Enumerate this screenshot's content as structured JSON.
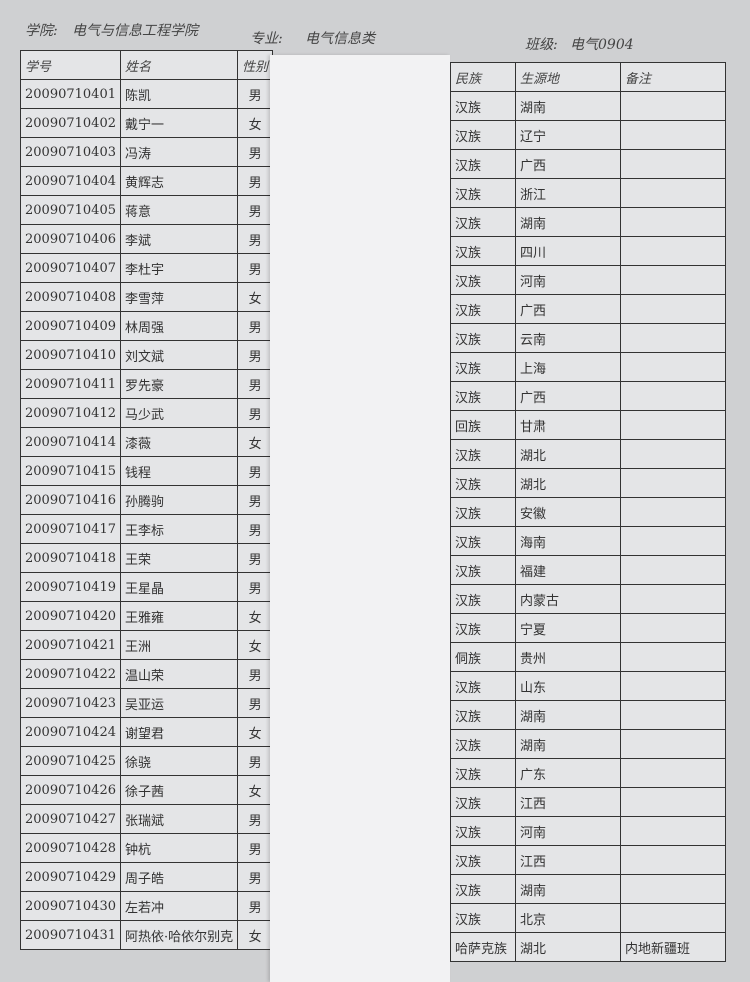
{
  "header": {
    "college_label": "学院:",
    "college": "电气与信息工程学院",
    "major_label": "专业:",
    "major": "电气信息类",
    "class_label": "班级:",
    "class": "电气0904"
  },
  "columns": {
    "id": "学号",
    "name": "姓名",
    "gender": "性别",
    "ethnicity": "民族",
    "origin": "生源地",
    "remarks": "备注"
  },
  "rows": [
    {
      "id": "20090710401",
      "name": "陈凯",
      "gender": "男",
      "ethnicity": "汉族",
      "origin": "湖南",
      "remarks": ""
    },
    {
      "id": "20090710402",
      "name": "戴宁一",
      "gender": "女",
      "ethnicity": "汉族",
      "origin": "辽宁",
      "remarks": ""
    },
    {
      "id": "20090710403",
      "name": "冯涛",
      "gender": "男",
      "ethnicity": "汉族",
      "origin": "广西",
      "remarks": ""
    },
    {
      "id": "20090710404",
      "name": "黄辉志",
      "gender": "男",
      "ethnicity": "汉族",
      "origin": "浙江",
      "remarks": ""
    },
    {
      "id": "20090710405",
      "name": "蒋意",
      "gender": "男",
      "ethnicity": "汉族",
      "origin": "湖南",
      "remarks": ""
    },
    {
      "id": "20090710406",
      "name": "李斌",
      "gender": "男",
      "ethnicity": "汉族",
      "origin": "四川",
      "remarks": ""
    },
    {
      "id": "20090710407",
      "name": "李杜宇",
      "gender": "男",
      "ethnicity": "汉族",
      "origin": "河南",
      "remarks": ""
    },
    {
      "id": "20090710408",
      "name": "李雪萍",
      "gender": "女",
      "ethnicity": "汉族",
      "origin": "广西",
      "remarks": ""
    },
    {
      "id": "20090710409",
      "name": "林周强",
      "gender": "男",
      "ethnicity": "汉族",
      "origin": "云南",
      "remarks": ""
    },
    {
      "id": "20090710410",
      "name": "刘文斌",
      "gender": "男",
      "ethnicity": "汉族",
      "origin": "上海",
      "remarks": ""
    },
    {
      "id": "20090710411",
      "name": "罗先豪",
      "gender": "男",
      "ethnicity": "汉族",
      "origin": "广西",
      "remarks": ""
    },
    {
      "id": "20090710412",
      "name": "马少武",
      "gender": "男",
      "ethnicity": "回族",
      "origin": "甘肃",
      "remarks": ""
    },
    {
      "id": "20090710414",
      "name": "漆薇",
      "gender": "女",
      "ethnicity": "汉族",
      "origin": "湖北",
      "remarks": ""
    },
    {
      "id": "20090710415",
      "name": "钱程",
      "gender": "男",
      "ethnicity": "汉族",
      "origin": "湖北",
      "remarks": ""
    },
    {
      "id": "20090710416",
      "name": "孙腾驹",
      "gender": "男",
      "ethnicity": "汉族",
      "origin": "安徽",
      "remarks": ""
    },
    {
      "id": "20090710417",
      "name": "王李标",
      "gender": "男",
      "ethnicity": "汉族",
      "origin": "海南",
      "remarks": ""
    },
    {
      "id": "20090710418",
      "name": "王荣",
      "gender": "男",
      "ethnicity": "汉族",
      "origin": "福建",
      "remarks": ""
    },
    {
      "id": "20090710419",
      "name": "王星晶",
      "gender": "男",
      "ethnicity": "汉族",
      "origin": "内蒙古",
      "remarks": ""
    },
    {
      "id": "20090710420",
      "name": "王雅雍",
      "gender": "女",
      "ethnicity": "汉族",
      "origin": "宁夏",
      "remarks": ""
    },
    {
      "id": "20090710421",
      "name": "王洲",
      "gender": "女",
      "ethnicity": "侗族",
      "origin": "贵州",
      "remarks": ""
    },
    {
      "id": "20090710422",
      "name": "温山荣",
      "gender": "男",
      "ethnicity": "汉族",
      "origin": "山东",
      "remarks": ""
    },
    {
      "id": "20090710423",
      "name": "吴亚运",
      "gender": "男",
      "ethnicity": "汉族",
      "origin": "湖南",
      "remarks": ""
    },
    {
      "id": "20090710424",
      "name": "谢望君",
      "gender": "女",
      "ethnicity": "汉族",
      "origin": "湖南",
      "remarks": ""
    },
    {
      "id": "20090710425",
      "name": "徐骁",
      "gender": "男",
      "ethnicity": "汉族",
      "origin": "广东",
      "remarks": ""
    },
    {
      "id": "20090710426",
      "name": "徐子茜",
      "gender": "女",
      "ethnicity": "汉族",
      "origin": "江西",
      "remarks": ""
    },
    {
      "id": "20090710427",
      "name": "张瑞斌",
      "gender": "男",
      "ethnicity": "汉族",
      "origin": "河南",
      "remarks": ""
    },
    {
      "id": "20090710428",
      "name": "钟杭",
      "gender": "男",
      "ethnicity": "汉族",
      "origin": "江西",
      "remarks": ""
    },
    {
      "id": "20090710429",
      "name": "周子皓",
      "gender": "男",
      "ethnicity": "汉族",
      "origin": "湖南",
      "remarks": ""
    },
    {
      "id": "20090710430",
      "name": "左若冲",
      "gender": "男",
      "ethnicity": "汉族",
      "origin": "北京",
      "remarks": ""
    },
    {
      "id": "20090710431",
      "name": "阿热依·哈依尔别克",
      "gender": "女",
      "ethnicity": "哈萨克族",
      "origin": "湖北",
      "remarks": "内地新疆班"
    }
  ]
}
